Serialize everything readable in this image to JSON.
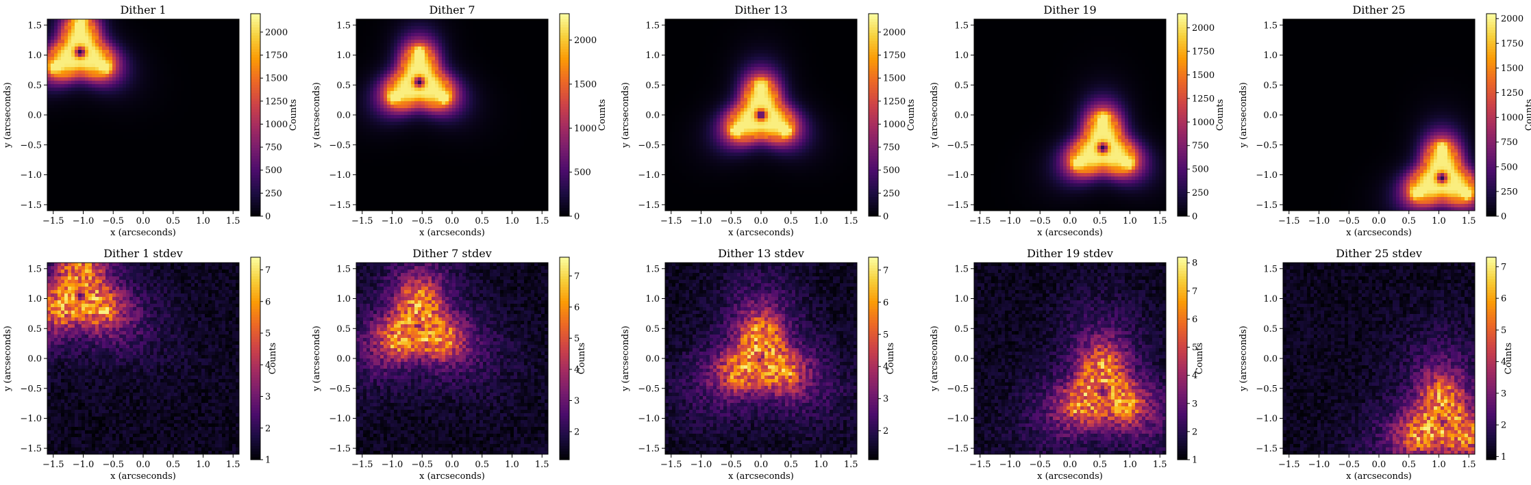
{
  "figure": {
    "type": "heatmap-grid",
    "colormap": "inferno",
    "colormap_stops": [
      "#000004",
      "#1b0c41",
      "#4a0c6b",
      "#781c6d",
      "#a52c60",
      "#cf4446",
      "#ed6925",
      "#fb9b06",
      "#f7d13d",
      "#fcffa4"
    ]
  },
  "chart_data": [
    {
      "type": "heatmap",
      "title": "Dither 1",
      "xlabel": "x (arcseconds)",
      "ylabel": "y (arcseconds)",
      "xlim": [
        -1.6,
        1.6
      ],
      "ylim": [
        -1.6,
        1.6
      ],
      "xticks": [
        "−1.5",
        "−1.0",
        "−0.5",
        "0.0",
        "0.5",
        "1.0",
        "1.5"
      ],
      "yticks": [
        "−1.5",
        "−1.0",
        "−0.5",
        "0.0",
        "0.5",
        "1.0",
        "1.5"
      ],
      "center": [
        -1.05,
        1.05
      ],
      "kind": "mean",
      "colorbar": {
        "label": "Counts",
        "min": 0,
        "max": 2200,
        "ticks": [
          "0",
          "250",
          "500",
          "750",
          "1000",
          "1250",
          "1500",
          "1750",
          "2000"
        ],
        "tick_values": [
          0,
          250,
          500,
          750,
          1000,
          1250,
          1500,
          1750,
          2000
        ]
      }
    },
    {
      "type": "heatmap",
      "title": "Dither 7",
      "xlabel": "x (arcseconds)",
      "ylabel": "y (arcseconds)",
      "xlim": [
        -1.6,
        1.6
      ],
      "ylim": [
        -1.6,
        1.6
      ],
      "xticks": [
        "−1.5",
        "−1.0",
        "−0.5",
        "0.0",
        "0.5",
        "1.0",
        "1.5"
      ],
      "yticks": [
        "−1.5",
        "−1.0",
        "−0.5",
        "0.0",
        "0.5",
        "1.0",
        "1.5"
      ],
      "center": [
        -0.55,
        0.55
      ],
      "kind": "mean",
      "colorbar": {
        "label": "Counts",
        "min": 0,
        "max": 2300,
        "ticks": [
          "0",
          "500",
          "1000",
          "1500",
          "2000"
        ],
        "tick_values": [
          0,
          500,
          1000,
          1500,
          2000
        ]
      }
    },
    {
      "type": "heatmap",
      "title": "Dither 13",
      "xlabel": "x (arcseconds)",
      "ylabel": "y (arcseconds)",
      "xlim": [
        -1.6,
        1.6
      ],
      "ylim": [
        -1.6,
        1.6
      ],
      "xticks": [
        "−1.5",
        "−1.0",
        "−0.5",
        "0.0",
        "0.5",
        "1.0",
        "1.5"
      ],
      "yticks": [
        "−1.5",
        "−1.0",
        "−0.5",
        "0.0",
        "0.5",
        "1.0",
        "1.5"
      ],
      "center": [
        0.0,
        0.0
      ],
      "kind": "mean",
      "colorbar": {
        "label": "Counts",
        "min": 0,
        "max": 2200,
        "ticks": [
          "0",
          "250",
          "500",
          "750",
          "1000",
          "1250",
          "1500",
          "1750",
          "2000"
        ],
        "tick_values": [
          0,
          250,
          500,
          750,
          1000,
          1250,
          1500,
          1750,
          2000
        ]
      }
    },
    {
      "type": "heatmap",
      "title": "Dither 19",
      "xlabel": "x (arcseconds)",
      "ylabel": "y (arcseconds)",
      "xlim": [
        -1.6,
        1.6
      ],
      "ylim": [
        -1.6,
        1.6
      ],
      "xticks": [
        "−1.5",
        "−1.0",
        "−0.5",
        "0.0",
        "0.5",
        "1.0",
        "1.5"
      ],
      "yticks": [
        "−1.5",
        "−1.0",
        "−0.5",
        "0.0",
        "0.5",
        "1.0",
        "1.5"
      ],
      "center": [
        0.55,
        -0.55
      ],
      "kind": "mean",
      "colorbar": {
        "label": "Counts",
        "min": 0,
        "max": 2150,
        "ticks": [
          "0",
          "250",
          "500",
          "750",
          "1000",
          "1250",
          "1500",
          "1750",
          "2000"
        ],
        "tick_values": [
          0,
          250,
          500,
          750,
          1000,
          1250,
          1500,
          1750,
          2000
        ]
      }
    },
    {
      "type": "heatmap",
      "title": "Dither 25",
      "xlabel": "x (arcseconds)",
      "ylabel": "y (arcseconds)",
      "xlim": [
        -1.6,
        1.6
      ],
      "ylim": [
        -1.6,
        1.6
      ],
      "xticks": [
        "−1.5",
        "−1.0",
        "−0.5",
        "0.0",
        "0.5",
        "1.0",
        "1.5"
      ],
      "yticks": [
        "−1.5",
        "−1.0",
        "−0.5",
        "0.0",
        "0.5",
        "1.0",
        "1.5"
      ],
      "center": [
        1.05,
        -1.05
      ],
      "kind": "mean",
      "colorbar": {
        "label": "Counts",
        "min": 0,
        "max": 2050,
        "ticks": [
          "0",
          "250",
          "500",
          "750",
          "1000",
          "1250",
          "1500",
          "1750",
          "2000"
        ],
        "tick_values": [
          0,
          250,
          500,
          750,
          1000,
          1250,
          1500,
          1750,
          2000
        ]
      }
    },
    {
      "type": "heatmap",
      "title": "Dither 1 stdev",
      "xlabel": "x (arcseconds)",
      "ylabel": "y (arcseconds)",
      "xlim": [
        -1.6,
        1.6
      ],
      "ylim": [
        -1.6,
        1.6
      ],
      "xticks": [
        "−1.5",
        "−1.0",
        "−0.5",
        "0.0",
        "0.5",
        "1.0",
        "1.5"
      ],
      "yticks": [
        "−1.5",
        "−1.0",
        "−0.5",
        "0.0",
        "0.5",
        "1.0",
        "1.5"
      ],
      "center": [
        -1.05,
        1.05
      ],
      "kind": "stdev",
      "colorbar": {
        "label": "Counts",
        "min": 1,
        "max": 7.4,
        "ticks": [
          "1",
          "2",
          "3",
          "4",
          "5",
          "6",
          "7"
        ],
        "tick_values": [
          1,
          2,
          3,
          4,
          5,
          6,
          7
        ]
      }
    },
    {
      "type": "heatmap",
      "title": "Dither 7 stdev",
      "xlabel": "x (arcseconds)",
      "ylabel": "y (arcseconds)",
      "xlim": [
        -1.6,
        1.6
      ],
      "ylim": [
        -1.6,
        1.6
      ],
      "xticks": [
        "−1.5",
        "−1.0",
        "−0.5",
        "0.0",
        "0.5",
        "1.0",
        "1.5"
      ],
      "yticks": [
        "−1.5",
        "−1.0",
        "−0.5",
        "0.0",
        "0.5",
        "1.0",
        "1.5"
      ],
      "center": [
        -0.55,
        0.55
      ],
      "kind": "stdev",
      "colorbar": {
        "label": "Counts",
        "min": 1.1,
        "max": 7.6,
        "ticks": [
          "2",
          "3",
          "4",
          "5",
          "6",
          "7"
        ],
        "tick_values": [
          2,
          3,
          4,
          5,
          6,
          7
        ]
      }
    },
    {
      "type": "heatmap",
      "title": "Dither 13 stdev",
      "xlabel": "x (arcseconds)",
      "ylabel": "y (arcseconds)",
      "xlim": [
        -1.6,
        1.6
      ],
      "ylim": [
        -1.6,
        1.6
      ],
      "xticks": [
        "−1.5",
        "−1.0",
        "−0.5",
        "0.0",
        "0.5",
        "1.0",
        "1.5"
      ],
      "yticks": [
        "−1.5",
        "−1.0",
        "−0.5",
        "0.0",
        "0.5",
        "1.0",
        "1.5"
      ],
      "center": [
        0.0,
        0.0
      ],
      "kind": "stdev",
      "colorbar": {
        "label": "Counts",
        "min": 1.1,
        "max": 7.4,
        "ticks": [
          "2",
          "3",
          "4",
          "5",
          "6",
          "7"
        ],
        "tick_values": [
          2,
          3,
          4,
          5,
          6,
          7
        ]
      }
    },
    {
      "type": "heatmap",
      "title": "Dither 19 stdev",
      "xlabel": "x (arcseconds)",
      "ylabel": "y (arcseconds)",
      "xlim": [
        -1.6,
        1.6
      ],
      "ylim": [
        -1.6,
        1.6
      ],
      "xticks": [
        "−1.5",
        "−1.0",
        "−0.5",
        "0.0",
        "0.5",
        "1.0",
        "1.5"
      ],
      "yticks": [
        "−1.5",
        "−1.0",
        "−0.5",
        "0.0",
        "0.5",
        "1.0",
        "1.5"
      ],
      "center": [
        0.55,
        -0.55
      ],
      "kind": "stdev",
      "colorbar": {
        "label": "Counts",
        "min": 1,
        "max": 8.2,
        "ticks": [
          "1",
          "2",
          "3",
          "4",
          "5",
          "6",
          "7",
          "8"
        ],
        "tick_values": [
          1,
          2,
          3,
          4,
          5,
          6,
          7,
          8
        ]
      }
    },
    {
      "type": "heatmap",
      "title": "Dither 25 stdev",
      "xlabel": "x (arcseconds)",
      "ylabel": "y (arcseconds)",
      "xlim": [
        -1.6,
        1.6
      ],
      "ylim": [
        -1.6,
        1.6
      ],
      "xticks": [
        "−1.5",
        "−1.0",
        "−0.5",
        "0.0",
        "0.5",
        "1.0",
        "1.5"
      ],
      "yticks": [
        "−1.5",
        "−1.0",
        "−0.5",
        "0.0",
        "0.5",
        "1.0",
        "1.5"
      ],
      "center": [
        1.05,
        -1.05
      ],
      "kind": "stdev",
      "colorbar": {
        "label": "Counts",
        "min": 0.9,
        "max": 7.3,
        "ticks": [
          "1",
          "2",
          "3",
          "4",
          "5",
          "6",
          "7"
        ],
        "tick_values": [
          1,
          2,
          3,
          4,
          5,
          6,
          7
        ]
      }
    }
  ]
}
